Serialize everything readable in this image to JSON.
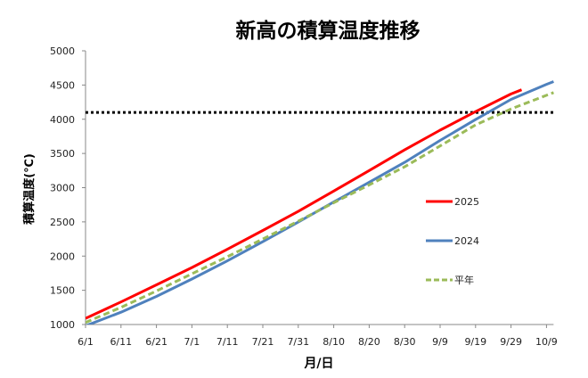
{
  "chart_data": {
    "type": "line",
    "title": "新高の積算温度推移",
    "xlabel": "月/日",
    "ylabel": "積算温度(℃)",
    "ylim": [
      1000,
      5000
    ],
    "yticks": [
      "1000",
      "1500",
      "2000",
      "2500",
      "3000",
      "3500",
      "4000",
      "4500",
      "5000"
    ],
    "xticks": [
      "6/1",
      "6/11",
      "6/21",
      "7/1",
      "7/11",
      "7/21",
      "7/31",
      "8/10",
      "8/20",
      "8/30",
      "9/9",
      "9/19",
      "9/29",
      "10/9"
    ],
    "xlim": [
      "6/1",
      "10/11"
    ],
    "grid": false,
    "legend_position": "right",
    "reference_line": {
      "y": 4100,
      "style": "dotted",
      "color": "#000000"
    },
    "series": [
      {
        "name": "2025",
        "color": "#ff0000",
        "style": "solid",
        "x": [
          "6/1",
          "6/11",
          "6/21",
          "7/1",
          "7/11",
          "7/21",
          "7/31",
          "8/10",
          "8/20",
          "8/30",
          "9/9",
          "9/19",
          "9/29",
          "10/2"
        ],
        "values": [
          1090,
          1330,
          1580,
          1833,
          2100,
          2375,
          2654,
          2950,
          3250,
          3552,
          3840,
          4112,
          4370,
          4430
        ]
      },
      {
        "name": "2024",
        "color": "#4f81bd",
        "style": "solid",
        "x": [
          "6/1",
          "6/11",
          "6/21",
          "7/1",
          "7/11",
          "7/21",
          "7/31",
          "8/10",
          "8/20",
          "8/30",
          "9/9",
          "9/19",
          "9/29",
          "10/9",
          "10/11"
        ],
        "values": [
          980,
          1180,
          1410,
          1664,
          1930,
          2210,
          2497,
          2790,
          3080,
          3370,
          3690,
          3995,
          4290,
          4510,
          4550
        ]
      },
      {
        "name": "平年",
        "color": "#9bbb59",
        "style": "dashed",
        "x": [
          "6/1",
          "6/11",
          "6/21",
          "7/1",
          "7/11",
          "7/21",
          "7/31",
          "8/10",
          "8/20",
          "8/30",
          "9/9",
          "9/19",
          "9/29",
          "10/9",
          "10/11"
        ],
        "values": [
          1030,
          1250,
          1490,
          1742,
          1990,
          2250,
          2510,
          2780,
          3040,
          3305,
          3610,
          3917,
          4150,
          4350,
          4390
        ]
      }
    ]
  }
}
